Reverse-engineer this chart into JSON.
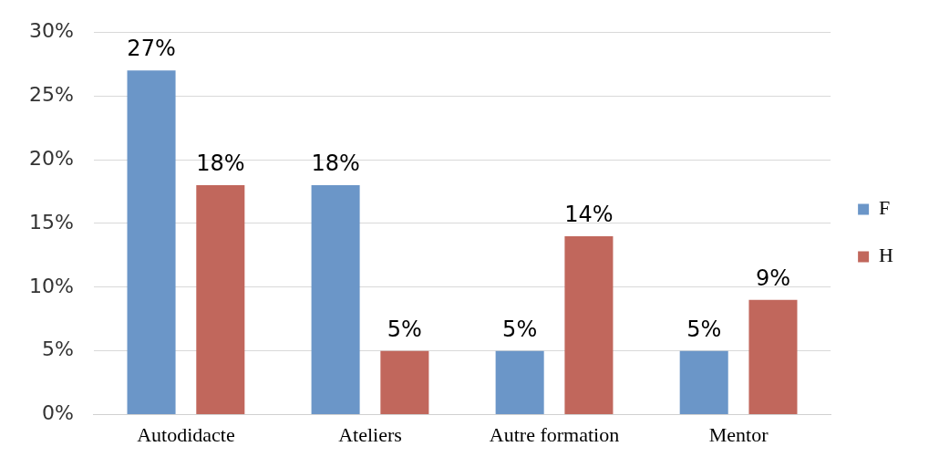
{
  "chart_data": {
    "type": "bar",
    "categories": [
      "Autodidacte",
      "Ateliers",
      "Autre formation",
      "Mentor"
    ],
    "series": [
      {
        "name": "F",
        "color": "#6b96c8",
        "values": [
          27,
          18,
          5,
          5
        ],
        "value_labels": [
          "27%",
          "18%",
          "5%",
          "5%"
        ]
      },
      {
        "name": "H",
        "color": "#c1675c",
        "values": [
          18,
          5,
          14,
          9
        ],
        "value_labels": [
          "18%",
          "5%",
          "14%",
          "9%"
        ]
      }
    ],
    "ylim": [
      0,
      30
    ],
    "yticks": [
      {
        "value": 0,
        "label": "0%"
      },
      {
        "value": 5,
        "label": "5%"
      },
      {
        "value": 10,
        "label": "10%"
      },
      {
        "value": 15,
        "label": "15%"
      },
      {
        "value": 20,
        "label": "20%"
      },
      {
        "value": 25,
        "label": "25%"
      },
      {
        "value": 30,
        "label": "30%"
      }
    ],
    "grid": "y",
    "legend": "right"
  }
}
